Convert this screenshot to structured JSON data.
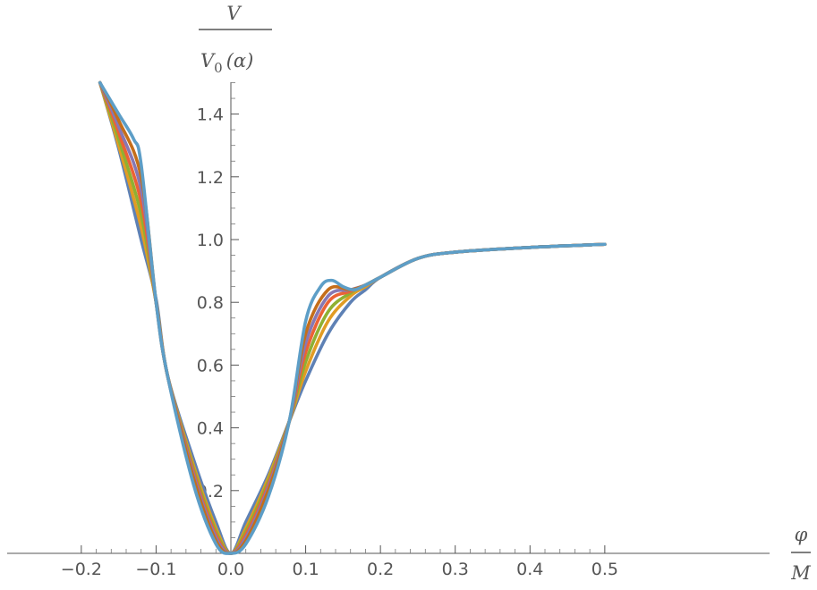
{
  "chart_data": {
    "type": "line",
    "title": "",
    "xlabel": {
      "numerator": "φ",
      "denominator": "M"
    },
    "ylabel": {
      "numerator": "V",
      "denominator_main": "V",
      "denominator_sub": "0",
      "denominator_arg": "(α)"
    },
    "xlim": [
      -0.2,
      0.5
    ],
    "ylim": [
      0,
      1.5
    ],
    "x_ticks": [
      -0.2,
      -0.1,
      0.0,
      0.1,
      0.2,
      0.3,
      0.4,
      0.5
    ],
    "x_tick_labels": [
      "−0.2",
      "−0.1",
      "0.0",
      "0.1",
      "0.2",
      "0.3",
      "0.4",
      "0.5"
    ],
    "y_ticks": [
      0.2,
      0.4,
      0.6,
      0.8,
      1.0,
      1.2,
      1.4
    ],
    "y_tick_labels": [
      "0.2",
      "0.4",
      "0.6",
      "0.8",
      "1.0",
      "1.2",
      "1.4"
    ],
    "grid": false,
    "legend": "none",
    "series": [
      {
        "color": "#5E81B5",
        "points": [
          [
            -0.175,
            1.5
          ],
          [
            -0.15,
            1.29
          ],
          [
            -0.12,
            1.0
          ],
          [
            -0.1,
            0.81
          ],
          [
            -0.085,
            0.57
          ],
          [
            -0.05,
            0.3
          ],
          [
            -0.02,
            0.1
          ],
          [
            0.0,
            0.0
          ],
          [
            0.02,
            0.1
          ],
          [
            0.05,
            0.25
          ],
          [
            0.078,
            0.42
          ],
          [
            0.1,
            0.55
          ],
          [
            0.13,
            0.7
          ],
          [
            0.16,
            0.8
          ],
          [
            0.18,
            0.84
          ],
          [
            0.2,
            0.88
          ],
          [
            0.25,
            0.94
          ],
          [
            0.3,
            0.96
          ],
          [
            0.4,
            0.975
          ],
          [
            0.5,
            0.985
          ]
        ]
      },
      {
        "color": "#E19C24",
        "points": [
          [
            -0.175,
            1.5
          ],
          [
            -0.15,
            1.3
          ],
          [
            -0.12,
            1.04
          ],
          [
            -0.1,
            0.8
          ],
          [
            -0.085,
            0.57
          ],
          [
            -0.05,
            0.28
          ],
          [
            -0.02,
            0.08
          ],
          [
            0.0,
            0.0
          ],
          [
            0.02,
            0.08
          ],
          [
            0.05,
            0.24
          ],
          [
            0.078,
            0.42
          ],
          [
            0.1,
            0.58
          ],
          [
            0.13,
            0.74
          ],
          [
            0.16,
            0.82
          ],
          [
            0.18,
            0.85
          ],
          [
            0.2,
            0.88
          ],
          [
            0.25,
            0.94
          ],
          [
            0.3,
            0.96
          ],
          [
            0.4,
            0.975
          ],
          [
            0.5,
            0.985
          ]
        ]
      },
      {
        "color": "#8FB032",
        "points": [
          [
            -0.175,
            1.5
          ],
          [
            -0.15,
            1.32
          ],
          [
            -0.12,
            1.08
          ],
          [
            -0.1,
            0.8
          ],
          [
            -0.085,
            0.57
          ],
          [
            -0.05,
            0.27
          ],
          [
            -0.02,
            0.07
          ],
          [
            0.0,
            0.0
          ],
          [
            0.02,
            0.07
          ],
          [
            0.05,
            0.23
          ],
          [
            0.078,
            0.42
          ],
          [
            0.1,
            0.61
          ],
          [
            0.13,
            0.77
          ],
          [
            0.16,
            0.83
          ],
          [
            0.18,
            0.855
          ],
          [
            0.2,
            0.88
          ],
          [
            0.25,
            0.94
          ],
          [
            0.3,
            0.96
          ],
          [
            0.4,
            0.975
          ],
          [
            0.5,
            0.985
          ]
        ]
      },
      {
        "color": "#EB6235",
        "points": [
          [
            -0.175,
            1.5
          ],
          [
            -0.15,
            1.34
          ],
          [
            -0.12,
            1.12
          ],
          [
            -0.1,
            0.8
          ],
          [
            -0.085,
            0.57
          ],
          [
            -0.05,
            0.26
          ],
          [
            -0.02,
            0.06
          ],
          [
            0.0,
            0.0
          ],
          [
            0.02,
            0.06
          ],
          [
            0.05,
            0.22
          ],
          [
            0.078,
            0.42
          ],
          [
            0.1,
            0.64
          ],
          [
            0.13,
            0.8
          ],
          [
            0.16,
            0.835
          ],
          [
            0.18,
            0.855
          ],
          [
            0.2,
            0.88
          ],
          [
            0.25,
            0.94
          ],
          [
            0.3,
            0.96
          ],
          [
            0.4,
            0.975
          ],
          [
            0.5,
            0.985
          ]
        ]
      },
      {
        "color": "#8778B3",
        "points": [
          [
            -0.175,
            1.5
          ],
          [
            -0.15,
            1.36
          ],
          [
            -0.12,
            1.16
          ],
          [
            -0.1,
            0.8
          ],
          [
            -0.085,
            0.57
          ],
          [
            -0.05,
            0.25
          ],
          [
            -0.02,
            0.05
          ],
          [
            0.0,
            0.0
          ],
          [
            0.02,
            0.05
          ],
          [
            0.05,
            0.21
          ],
          [
            0.078,
            0.42
          ],
          [
            0.1,
            0.67
          ],
          [
            0.13,
            0.82
          ],
          [
            0.16,
            0.84
          ],
          [
            0.18,
            0.855
          ],
          [
            0.2,
            0.88
          ],
          [
            0.25,
            0.94
          ],
          [
            0.3,
            0.96
          ],
          [
            0.4,
            0.975
          ],
          [
            0.5,
            0.985
          ]
        ]
      },
      {
        "color": "#C56E1A",
        "points": [
          [
            -0.175,
            1.5
          ],
          [
            -0.15,
            1.38
          ],
          [
            -0.12,
            1.2
          ],
          [
            -0.1,
            0.8
          ],
          [
            -0.085,
            0.57
          ],
          [
            -0.05,
            0.24
          ],
          [
            -0.02,
            0.04
          ],
          [
            0.0,
            0.0
          ],
          [
            0.02,
            0.04
          ],
          [
            0.05,
            0.2
          ],
          [
            0.078,
            0.42
          ],
          [
            0.1,
            0.7
          ],
          [
            0.13,
            0.84
          ],
          [
            0.16,
            0.84
          ],
          [
            0.18,
            0.855
          ],
          [
            0.2,
            0.88
          ],
          [
            0.25,
            0.94
          ],
          [
            0.3,
            0.96
          ],
          [
            0.4,
            0.975
          ],
          [
            0.5,
            0.985
          ]
        ]
      },
      {
        "color": "#5D9EC7",
        "points": [
          [
            -0.175,
            1.5
          ],
          [
            -0.15,
            1.4
          ],
          [
            -0.13,
            1.32
          ],
          [
            -0.12,
            1.24
          ],
          [
            -0.1,
            0.8
          ],
          [
            -0.085,
            0.57
          ],
          [
            -0.05,
            0.22
          ],
          [
            -0.02,
            0.03
          ],
          [
            0.0,
            0.0
          ],
          [
            0.02,
            0.03
          ],
          [
            0.05,
            0.18
          ],
          [
            0.078,
            0.42
          ],
          [
            0.1,
            0.74
          ],
          [
            0.12,
            0.85
          ],
          [
            0.135,
            0.87
          ],
          [
            0.15,
            0.85
          ],
          [
            0.165,
            0.84
          ],
          [
            0.18,
            0.855
          ],
          [
            0.2,
            0.88
          ],
          [
            0.25,
            0.94
          ],
          [
            0.3,
            0.96
          ],
          [
            0.4,
            0.975
          ],
          [
            0.5,
            0.985
          ]
        ]
      }
    ]
  }
}
